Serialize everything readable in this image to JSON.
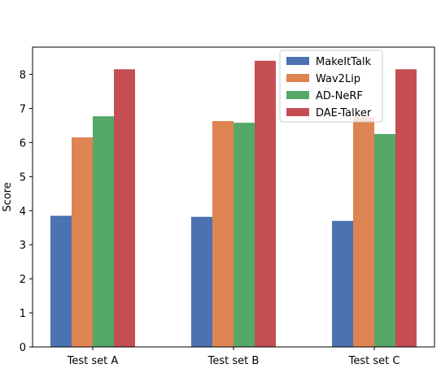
{
  "chart_data": {
    "type": "bar",
    "categories": [
      "Test set A",
      "Test set B",
      "Test set C"
    ],
    "series": [
      {
        "name": "MakeItTalk",
        "values": [
          3.85,
          3.82,
          3.7
        ],
        "color": "#4c72b0"
      },
      {
        "name": "Wav2Lip",
        "values": [
          6.15,
          6.63,
          6.75
        ],
        "color": "#dd8452"
      },
      {
        "name": "AD-NeRF",
        "values": [
          6.77,
          6.58,
          6.25
        ],
        "color": "#55a868"
      },
      {
        "name": "DAE-Talker",
        "values": [
          8.15,
          8.4,
          8.15
        ],
        "color": "#c44e52"
      }
    ],
    "ylabel": "Score",
    "xlabel": "",
    "ylim": [
      0,
      8.8
    ],
    "yticks": [
      "0",
      "1",
      "2",
      "3",
      "4",
      "5",
      "6",
      "7",
      "8"
    ],
    "grid": false,
    "legend_position": "top-right"
  }
}
